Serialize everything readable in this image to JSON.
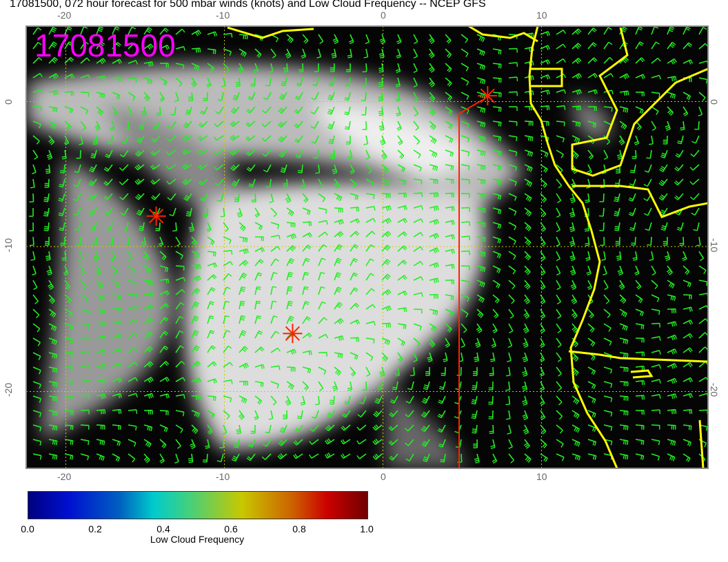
{
  "title": "17081500, 072 hour forecast for 500 mbar winds (knots) and Low Cloud Frequency -- NCEP GFS",
  "map": {
    "stamp": "17081500",
    "lon_range": [
      -22.5,
      20.5
    ],
    "lat_range": [
      -25.3,
      5.2
    ],
    "lon_ticks": [
      "-20",
      "-10",
      "0",
      "10"
    ],
    "lat_ticks": [
      "0",
      "-10",
      "-20"
    ],
    "colors": {
      "wind_barbs": "#22ee22",
      "coastline": "#ffff00",
      "markers": "#ff2200",
      "stamp": "#ff00ff",
      "grid": "#cccc00"
    },
    "markers": [
      {
        "lon": -14.3,
        "lat": -7.9
      },
      {
        "lon": -5.7,
        "lat": -16.0
      },
      {
        "lon": 6.6,
        "lat": 0.4
      }
    ]
  },
  "colorbar": {
    "label": "Low Cloud Frequency",
    "ticks": [
      "0.0",
      "0.2",
      "0.4",
      "0.6",
      "0.8",
      "1.0"
    ],
    "range": [
      0,
      1
    ]
  }
}
